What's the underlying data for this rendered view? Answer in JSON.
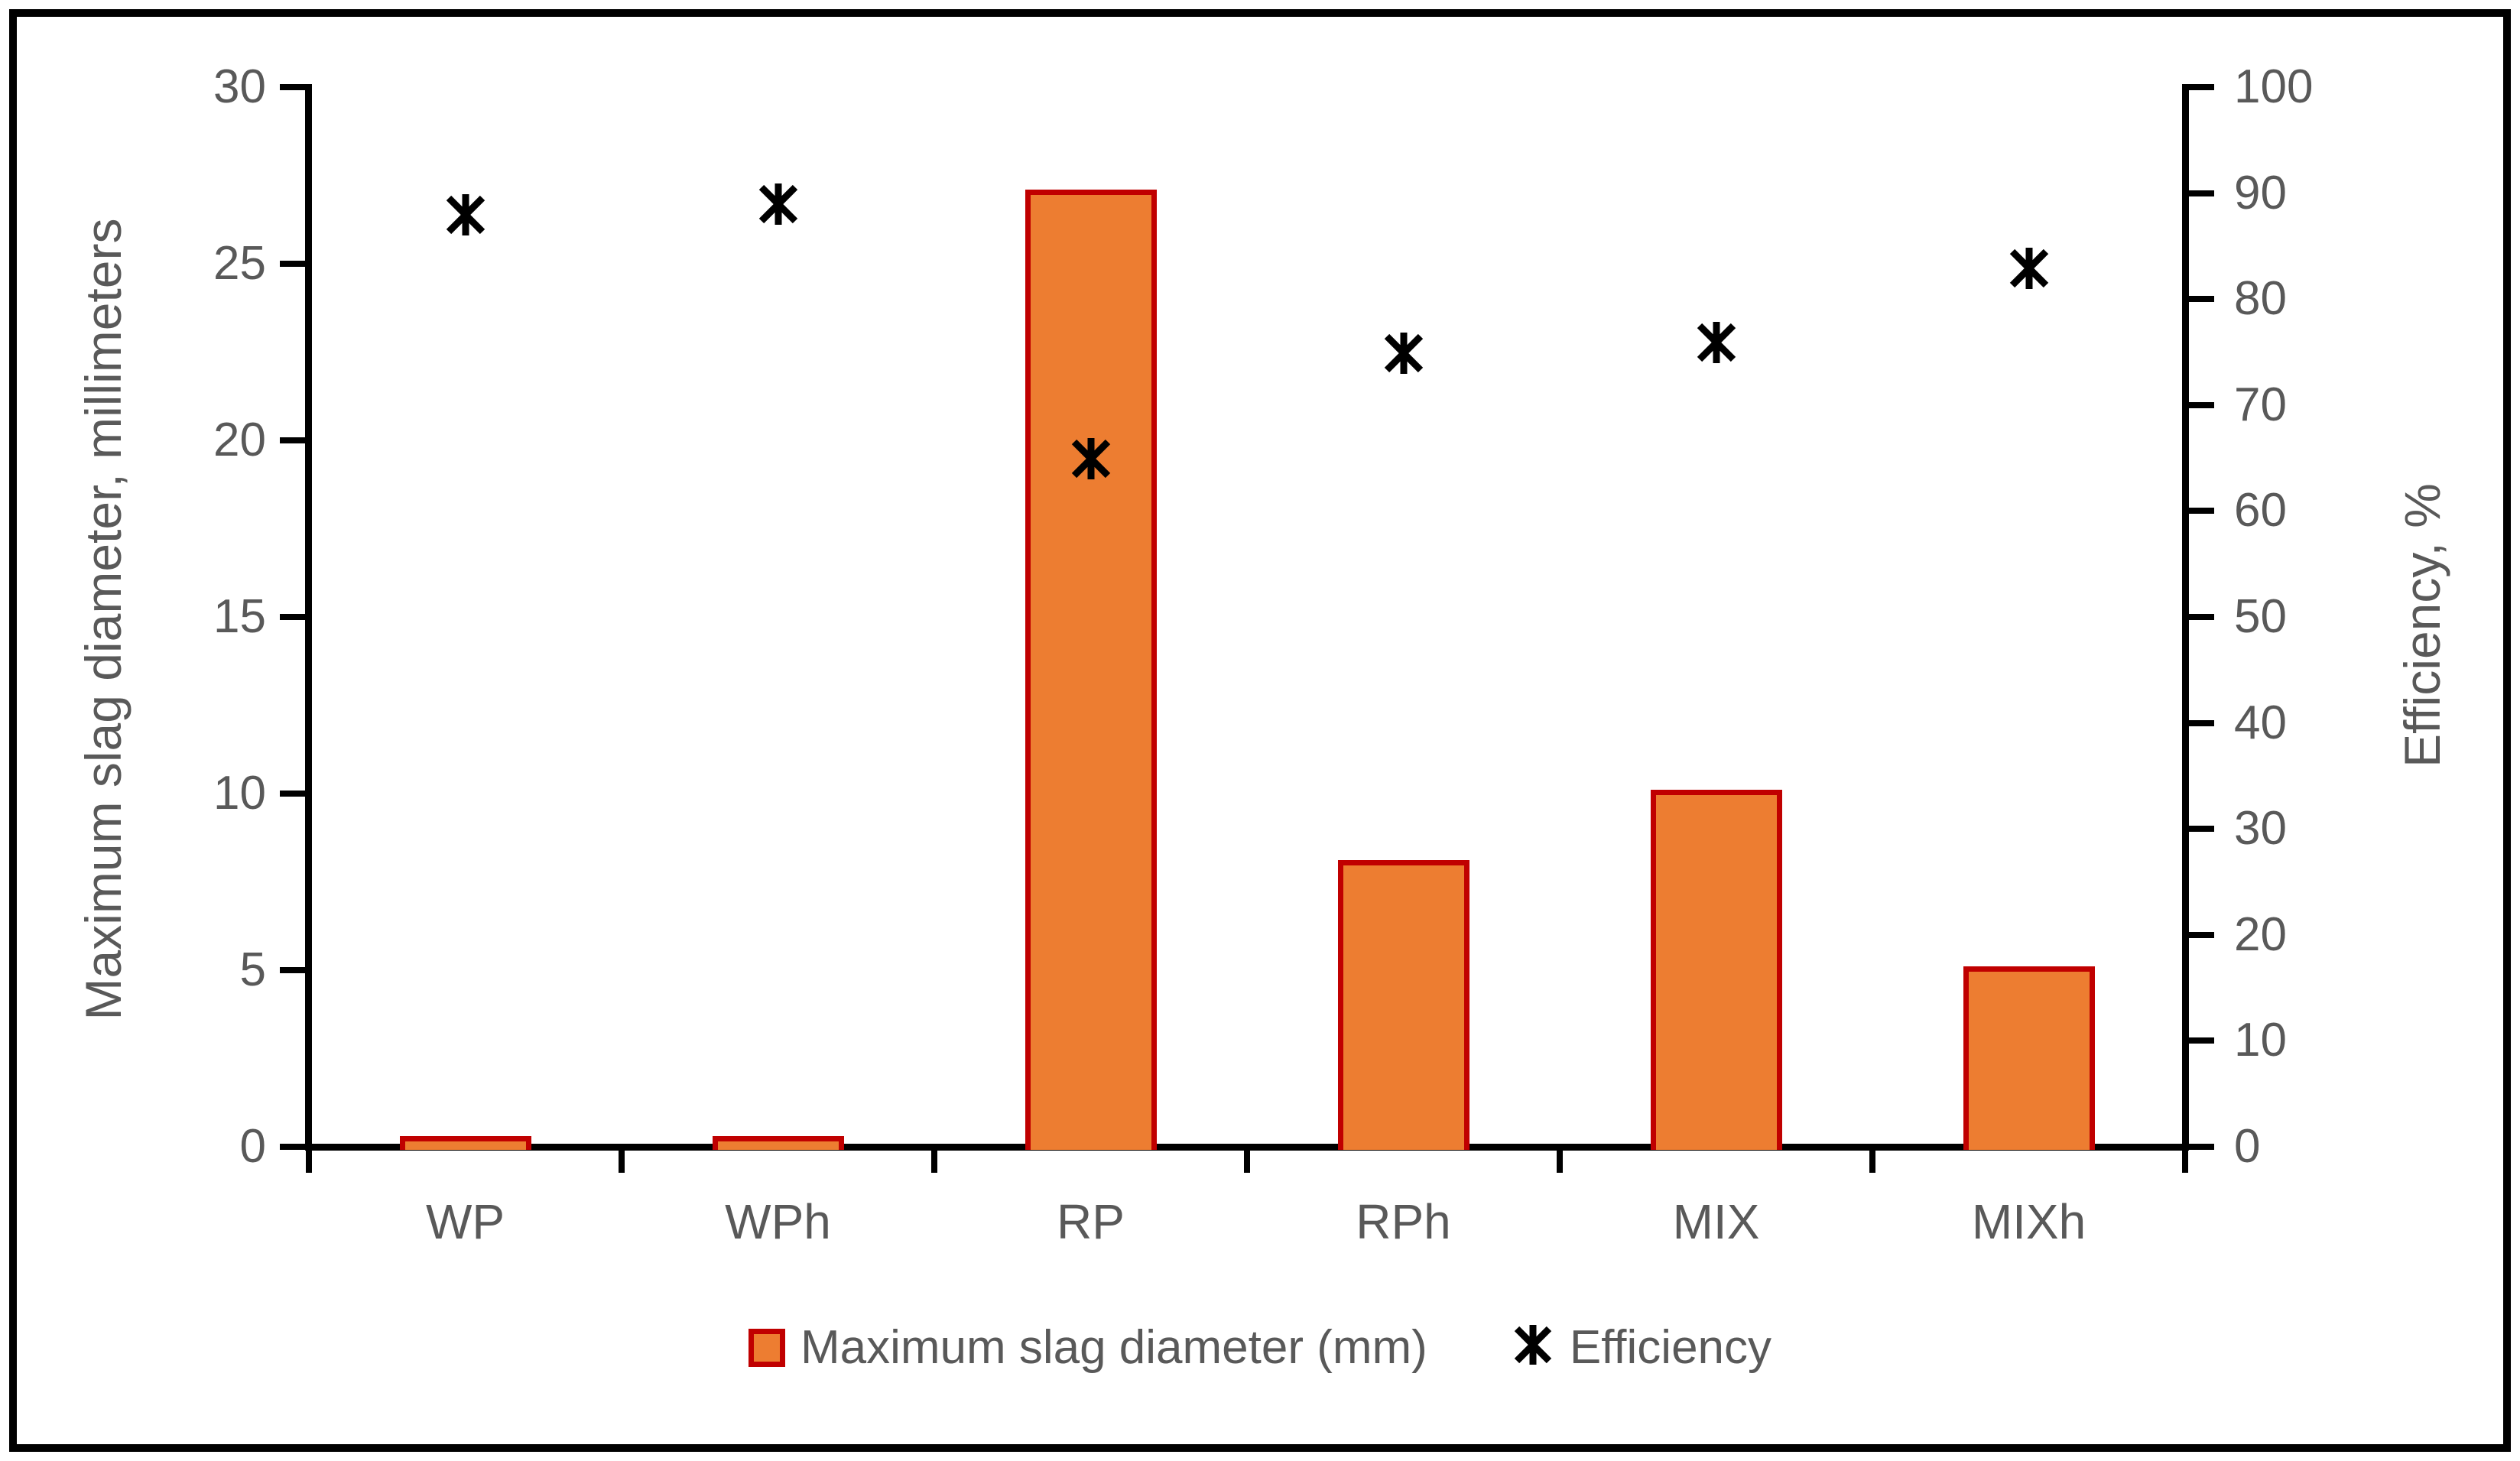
{
  "figure": {
    "left_axis_title": "Maximum slag diameter, millimeters",
    "right_axis_title": "Efficiency, %",
    "legend": {
      "bar_series_label": "Maximum slag diameter (mm)",
      "scatter_series_label": "Efficiency"
    }
  },
  "colors": {
    "bar_fill": "#ED7D31",
    "bar_border": "#C00000",
    "marker": "#000000",
    "axis_line": "#000000",
    "text_gray": "#595959",
    "background": "#FFFFFF"
  },
  "chart_data": {
    "type": "bar",
    "subtype": "combo-bar-scatter",
    "title": "",
    "categories": [
      "WP",
      "WPh",
      "RP",
      "RPh",
      "MIX",
      "MIXh"
    ],
    "series": [
      {
        "name": "Maximum slag diameter (mm)",
        "type": "bar",
        "axis": "left",
        "values": [
          0.2,
          0.2,
          27,
          8,
          10,
          5
        ],
        "fill": "#ED7D31",
        "border": "#C00000"
      },
      {
        "name": "Efficiency",
        "type": "scatter",
        "axis": "right",
        "marker": "asterisk",
        "color": "#000000",
        "values": [
          88,
          89,
          65,
          75,
          76,
          83
        ]
      }
    ],
    "left_axis": {
      "label": "Maximum slag diameter, millimeters",
      "min": 0,
      "max": 30,
      "step": 5
    },
    "right_axis": {
      "label": "Efficiency, %",
      "min": 0,
      "max": 100,
      "step": 10
    },
    "grid": false,
    "legend_position": "bottom"
  }
}
